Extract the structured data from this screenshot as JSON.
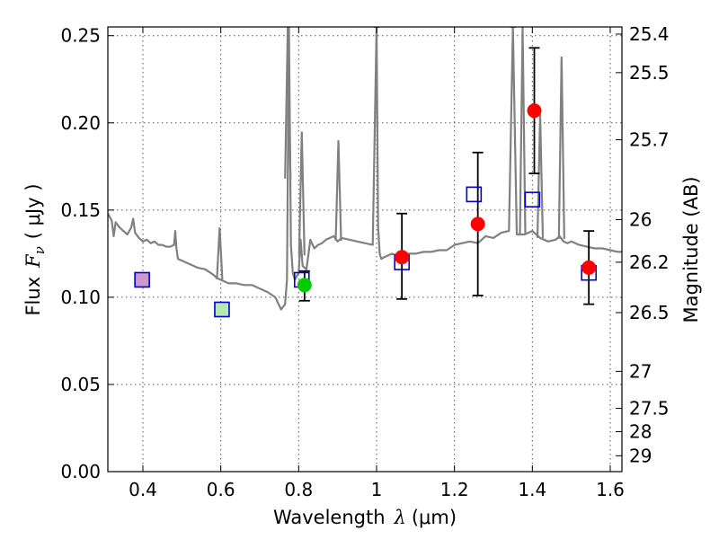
{
  "chart_data": {
    "type": "scatter",
    "xlabel": "Wavelength",
    "xlabel_symbol": "λ",
    "xlabel_unit": "(μm)",
    "ylabel": "Flux",
    "ylabel_symbol": "F",
    "ylabel_subscript": "ν",
    "ylabel_unit": "( μJy )",
    "y2label": "Magnitude (AB)",
    "xlim": [
      0.31,
      1.63
    ],
    "ylim": [
      0.0,
      0.255
    ],
    "grid": true,
    "x_ticks": [
      0.4,
      0.6,
      0.8,
      1.0,
      1.2,
      1.4,
      1.6
    ],
    "x_tick_labels": [
      "0.4",
      "0.6",
      "0.8",
      "1",
      "1.2",
      "1.4",
      "1.6"
    ],
    "y_ticks": [
      0.0,
      0.05,
      0.1,
      0.15,
      0.2,
      0.25
    ],
    "y_tick_labels": [
      "0.00",
      "0.05",
      "0.10",
      "0.15",
      "0.20",
      "0.25"
    ],
    "y2_ticks": [
      {
        "label": "25.4",
        "flux": 0.2509
      },
      {
        "label": "25.5",
        "flux": 0.2288
      },
      {
        "label": "25.7",
        "flux": 0.1903
      },
      {
        "label": "26",
        "flux": 0.1445
      },
      {
        "label": "26.2",
        "flux": 0.1201
      },
      {
        "label": "26.5",
        "flux": 0.0912
      },
      {
        "label": "27",
        "flux": 0.0575
      },
      {
        "label": "27.5",
        "flux": 0.0363
      },
      {
        "label": "28",
        "flux": 0.0229
      },
      {
        "label": "29",
        "flux": 0.0091
      }
    ],
    "colors": {
      "model_line": "#808080",
      "observed": "#ff0000",
      "observed_alt": "#00cc00",
      "model_box": "#0000cc",
      "fill_purple": "#cc99cc",
      "fill_green": "#b6e8b6",
      "errorbar": "#000000",
      "grid": "#555555"
    },
    "observed_points": [
      {
        "x": 0.815,
        "y": 0.107,
        "yerr_low": 0.009,
        "yerr_high": 0.008,
        "color": "#00cc00"
      },
      {
        "x": 1.065,
        "y": 0.123,
        "yerr_low": 0.024,
        "yerr_high": 0.025,
        "color": "#ff0000"
      },
      {
        "x": 1.26,
        "y": 0.142,
        "yerr_low": 0.041,
        "yerr_high": 0.041,
        "color": "#ff0000"
      },
      {
        "x": 1.405,
        "y": 0.207,
        "yerr_low": 0.036,
        "yerr_high": 0.036,
        "color": "#ff0000"
      },
      {
        "x": 1.545,
        "y": 0.117,
        "yerr_low": 0.021,
        "yerr_high": 0.021,
        "color": "#ff0000"
      }
    ],
    "model_points": [
      {
        "x": 0.398,
        "y": 0.11,
        "fill": "#cc99cc"
      },
      {
        "x": 0.603,
        "y": 0.093,
        "fill": "#b6e8b6"
      },
      {
        "x": 0.808,
        "y": 0.11,
        "fill": "none"
      },
      {
        "x": 1.065,
        "y": 0.12,
        "fill": "none"
      },
      {
        "x": 1.25,
        "y": 0.159,
        "fill": "none"
      },
      {
        "x": 1.4,
        "y": 0.156,
        "fill": "none"
      },
      {
        "x": 1.545,
        "y": 0.114,
        "fill": "none"
      }
    ],
    "model_spectrum": {
      "x": [
        0.31,
        0.32,
        0.325,
        0.33,
        0.34,
        0.35,
        0.36,
        0.37,
        0.375,
        0.38,
        0.39,
        0.4,
        0.41,
        0.42,
        0.43,
        0.44,
        0.45,
        0.46,
        0.47,
        0.48,
        0.483,
        0.486,
        0.49,
        0.5,
        0.52,
        0.54,
        0.56,
        0.58,
        0.59,
        0.6,
        0.61,
        0.62,
        0.64,
        0.66,
        0.68,
        0.7,
        0.72,
        0.74,
        0.755,
        0.765,
        0.77,
        0.775,
        0.78,
        0.785,
        0.79,
        0.8,
        0.805,
        0.81,
        0.815,
        0.82,
        0.83,
        0.84,
        0.85,
        0.86,
        0.87,
        0.88,
        0.89,
        0.9,
        0.91,
        0.93,
        0.95,
        0.97,
        0.99,
        1.0,
        1.004,
        1.008,
        1.012,
        1.02,
        1.03,
        1.04,
        1.05,
        1.06,
        1.07,
        1.08,
        1.1,
        1.12,
        1.14,
        1.16,
        1.18,
        1.2,
        1.22,
        1.24,
        1.26,
        1.28,
        1.3,
        1.32,
        1.34,
        1.35,
        1.36,
        1.38,
        1.4,
        1.42,
        1.44,
        1.46,
        1.47,
        1.48,
        1.49,
        1.5,
        1.52,
        1.54,
        1.56,
        1.58,
        1.6,
        1.62,
        1.63
      ],
      "y": [
        0.148,
        0.144,
        0.135,
        0.143,
        0.14,
        0.138,
        0.136,
        0.14,
        0.145,
        0.137,
        0.134,
        0.132,
        0.133,
        0.131,
        0.132,
        0.13,
        0.13,
        0.129,
        0.129,
        0.13,
        0.138,
        0.128,
        0.122,
        0.121,
        0.119,
        0.117,
        0.116,
        0.113,
        0.111,
        0.11,
        0.109,
        0.108,
        0.108,
        0.107,
        0.107,
        0.105,
        0.103,
        0.1,
        0.093,
        0.096,
        0.11,
        0.255,
        0.13,
        0.114,
        0.11,
        0.114,
        0.133,
        0.118,
        0.117,
        0.116,
        0.133,
        0.128,
        0.13,
        0.131,
        0.133,
        0.134,
        0.135,
        0.132,
        0.134,
        0.133,
        0.132,
        0.131,
        0.13,
        0.255,
        0.14,
        0.125,
        0.122,
        0.123,
        0.124,
        0.125,
        0.124,
        0.124,
        0.125,
        0.125,
        0.125,
        0.126,
        0.126,
        0.127,
        0.127,
        0.13,
        0.131,
        0.132,
        0.131,
        0.135,
        0.134,
        0.137,
        0.138,
        0.255,
        0.136,
        0.136,
        0.138,
        0.134,
        0.132,
        0.133,
        0.135,
        0.132,
        0.131,
        0.132,
        0.13,
        0.129,
        0.128,
        0.128,
        0.127,
        0.126,
        0.126
      ]
    },
    "emission_spikes": [
      {
        "x": 0.597,
        "y": 0.14
      },
      {
        "x": 0.772,
        "y": 0.255
      },
      {
        "x": 0.808,
        "y": 0.195
      },
      {
        "x": 0.902,
        "y": 0.19
      },
      {
        "x": 1.0,
        "y": 0.255
      },
      {
        "x": 1.35,
        "y": 0.255
      },
      {
        "x": 1.375,
        "y": 0.255
      },
      {
        "x": 1.42,
        "y": 0.205
      },
      {
        "x": 1.475,
        "y": 0.238
      }
    ]
  }
}
